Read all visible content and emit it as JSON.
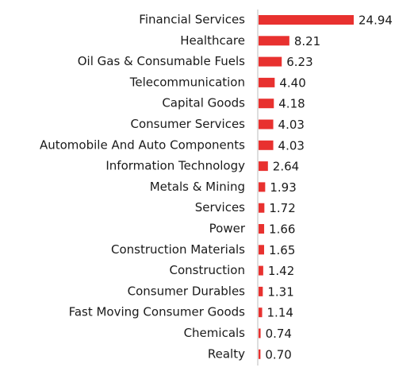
{
  "chart_data": {
    "type": "bar",
    "orientation": "horizontal",
    "categories": [
      "Financial Services",
      "Healthcare",
      "Oil Gas & Consumable Fuels",
      "Telecommunication",
      "Capital Goods",
      "Consumer Services",
      "Automobile And Auto Components",
      "Information Technology",
      "Metals & Mining",
      "Services",
      "Power",
      "Construction Materials",
      "Construction",
      "Consumer Durables",
      "Fast Moving Consumer Goods",
      "Chemicals",
      "Realty"
    ],
    "values": [
      24.94,
      8.21,
      6.23,
      4.4,
      4.18,
      4.03,
      4.03,
      2.64,
      1.93,
      1.72,
      1.66,
      1.65,
      1.42,
      1.31,
      1.14,
      0.74,
      0.7
    ],
    "value_labels": [
      "24.94",
      "8.21",
      "6.23",
      "4.40",
      "4.18",
      "4.03",
      "4.03",
      "2.64",
      "1.93",
      "1.72",
      "1.66",
      "1.65",
      "1.42",
      "1.31",
      "1.14",
      "0.74",
      "0.70"
    ],
    "color": "#e8312f"
  }
}
